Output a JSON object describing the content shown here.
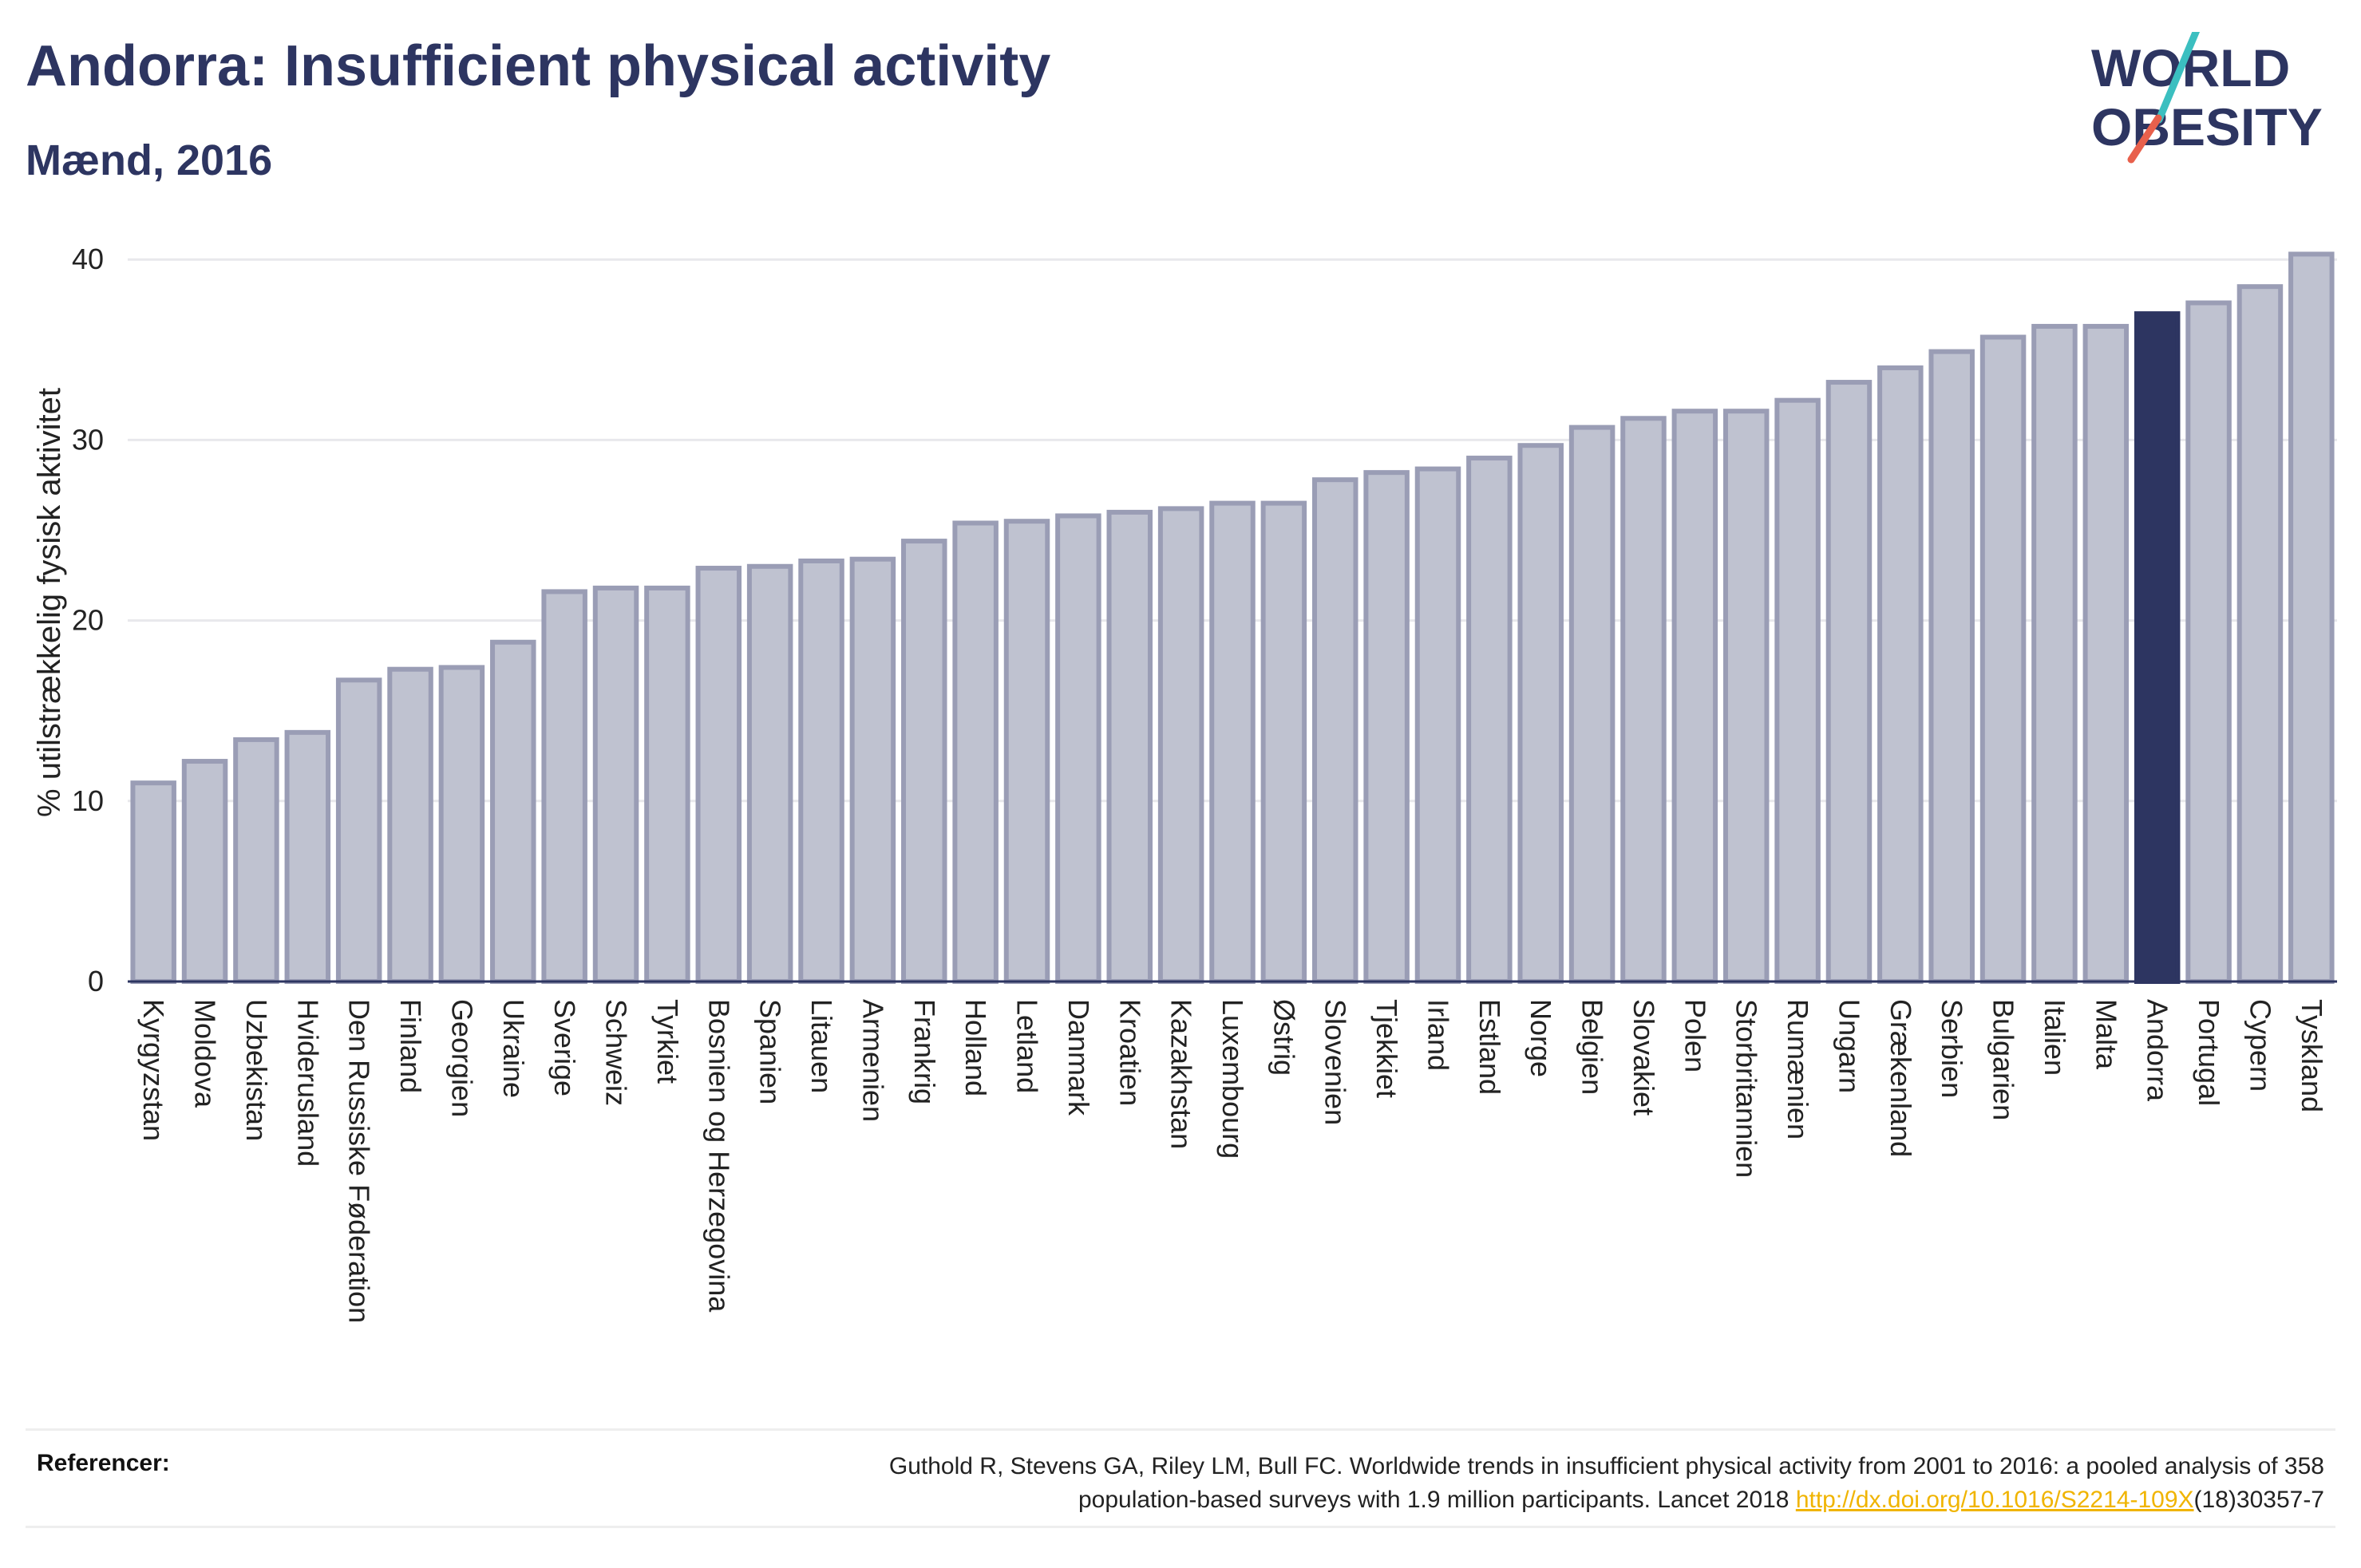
{
  "header": {
    "title": "Andorra: Insufficient physical activity",
    "subtitle": "Mænd, 2016"
  },
  "logo": {
    "line1": "WORLD",
    "line2": "OBESITY",
    "accent_teal": "#3bbfc0",
    "accent_red": "#e8604c"
  },
  "colors": {
    "bar": "#bfc2d0",
    "bar_stroke": "#9a9db5",
    "highlight": "#2d3561",
    "grid": "#e8e8ec",
    "text": "#2d3561"
  },
  "chart_data": {
    "type": "bar",
    "ylabel": "% utilstrækkelig fysisk aktivitet",
    "ylim": [
      0,
      42
    ],
    "yticks": [
      0,
      10,
      20,
      30,
      40
    ],
    "grid": true,
    "highlight": "Andorra",
    "categories": [
      "Kyrgyzstan",
      "Moldova",
      "Uzbekistan",
      "Hviderusland",
      "Den Russiske Føderation",
      "Finland",
      "Georgien",
      "Ukraine",
      "Sverige",
      "Schweiz",
      "Tyrkiet",
      "Bosnien og Herzegovina",
      "Spanien",
      "Litauen",
      "Armenien",
      "Frankrig",
      "Holland",
      "Letland",
      "Danmark",
      "Kroatien",
      "Kazakhstan",
      "Luxembourg",
      "Østrig",
      "Slovenien",
      "Tjekkiet",
      "Irland",
      "Estland",
      "Norge",
      "Belgien",
      "Slovakiet",
      "Polen",
      "Storbritannien",
      "Rumænien",
      "Ungarn",
      "Grækenland",
      "Serbien",
      "Bulgarien",
      "Italien",
      "Malta",
      "Andorra",
      "Portugal",
      "Cypern",
      "Tyskland"
    ],
    "values": [
      11.0,
      12.2,
      13.4,
      13.8,
      16.7,
      17.3,
      17.4,
      18.8,
      21.6,
      21.8,
      21.8,
      22.9,
      23.0,
      23.3,
      23.4,
      24.4,
      25.4,
      25.5,
      25.8,
      26.0,
      26.2,
      26.5,
      26.5,
      27.8,
      28.2,
      28.4,
      29.0,
      29.7,
      30.7,
      31.2,
      31.6,
      31.6,
      32.2,
      33.2,
      34.0,
      34.9,
      35.7,
      36.3,
      36.3,
      37.0,
      37.6,
      38.5,
      40.3
    ]
  },
  "references": {
    "label": "Referencer:",
    "line1": "Guthold R, Stevens GA, Riley LM, Bull FC. Worldwide trends in insufficient physical activity from 2001 to 2016: a pooled analysis of 358",
    "line2_pre": "population-based surveys with 1.9 million participants. Lancet 2018 ",
    "link": "http://dx.doi.org/10.1016/S2214-109X",
    "line2_post": "(18)30357-7"
  }
}
